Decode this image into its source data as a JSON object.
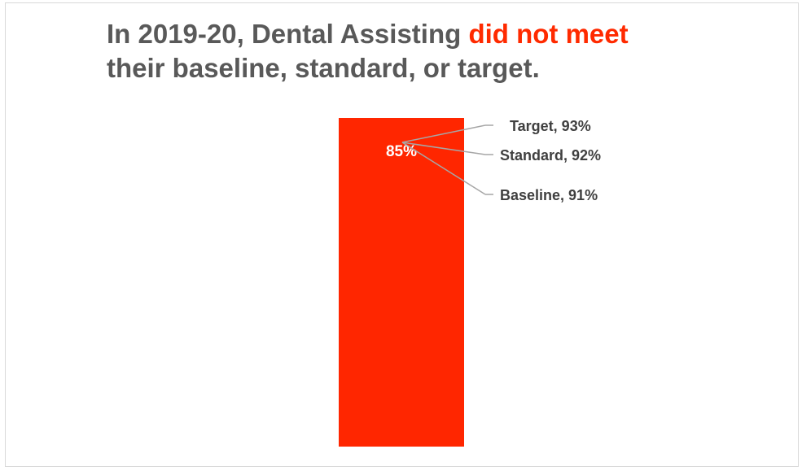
{
  "title": {
    "part1": "In 2019-20, Dental Assisting ",
    "highlight": "did not meet",
    "part2": "their baseline, standard, or target."
  },
  "chart_data": {
    "type": "bar",
    "title": "In 2019-20, Dental Assisting did not meet their baseline, standard, or target.",
    "categories": [
      "Dental Assisting"
    ],
    "values": [
      85
    ],
    "value_labels": [
      "85%"
    ],
    "ylim": [
      0,
      100
    ],
    "grid": false,
    "bar_color": "#ff2600",
    "annotations": [
      {
        "label": "Target, 93%",
        "value": 93
      },
      {
        "label": "Standard, 92%",
        "value": 92
      },
      {
        "label": "Baseline, 91%",
        "value": 91
      }
    ],
    "annotation_line_color": "#a6a6a6"
  }
}
